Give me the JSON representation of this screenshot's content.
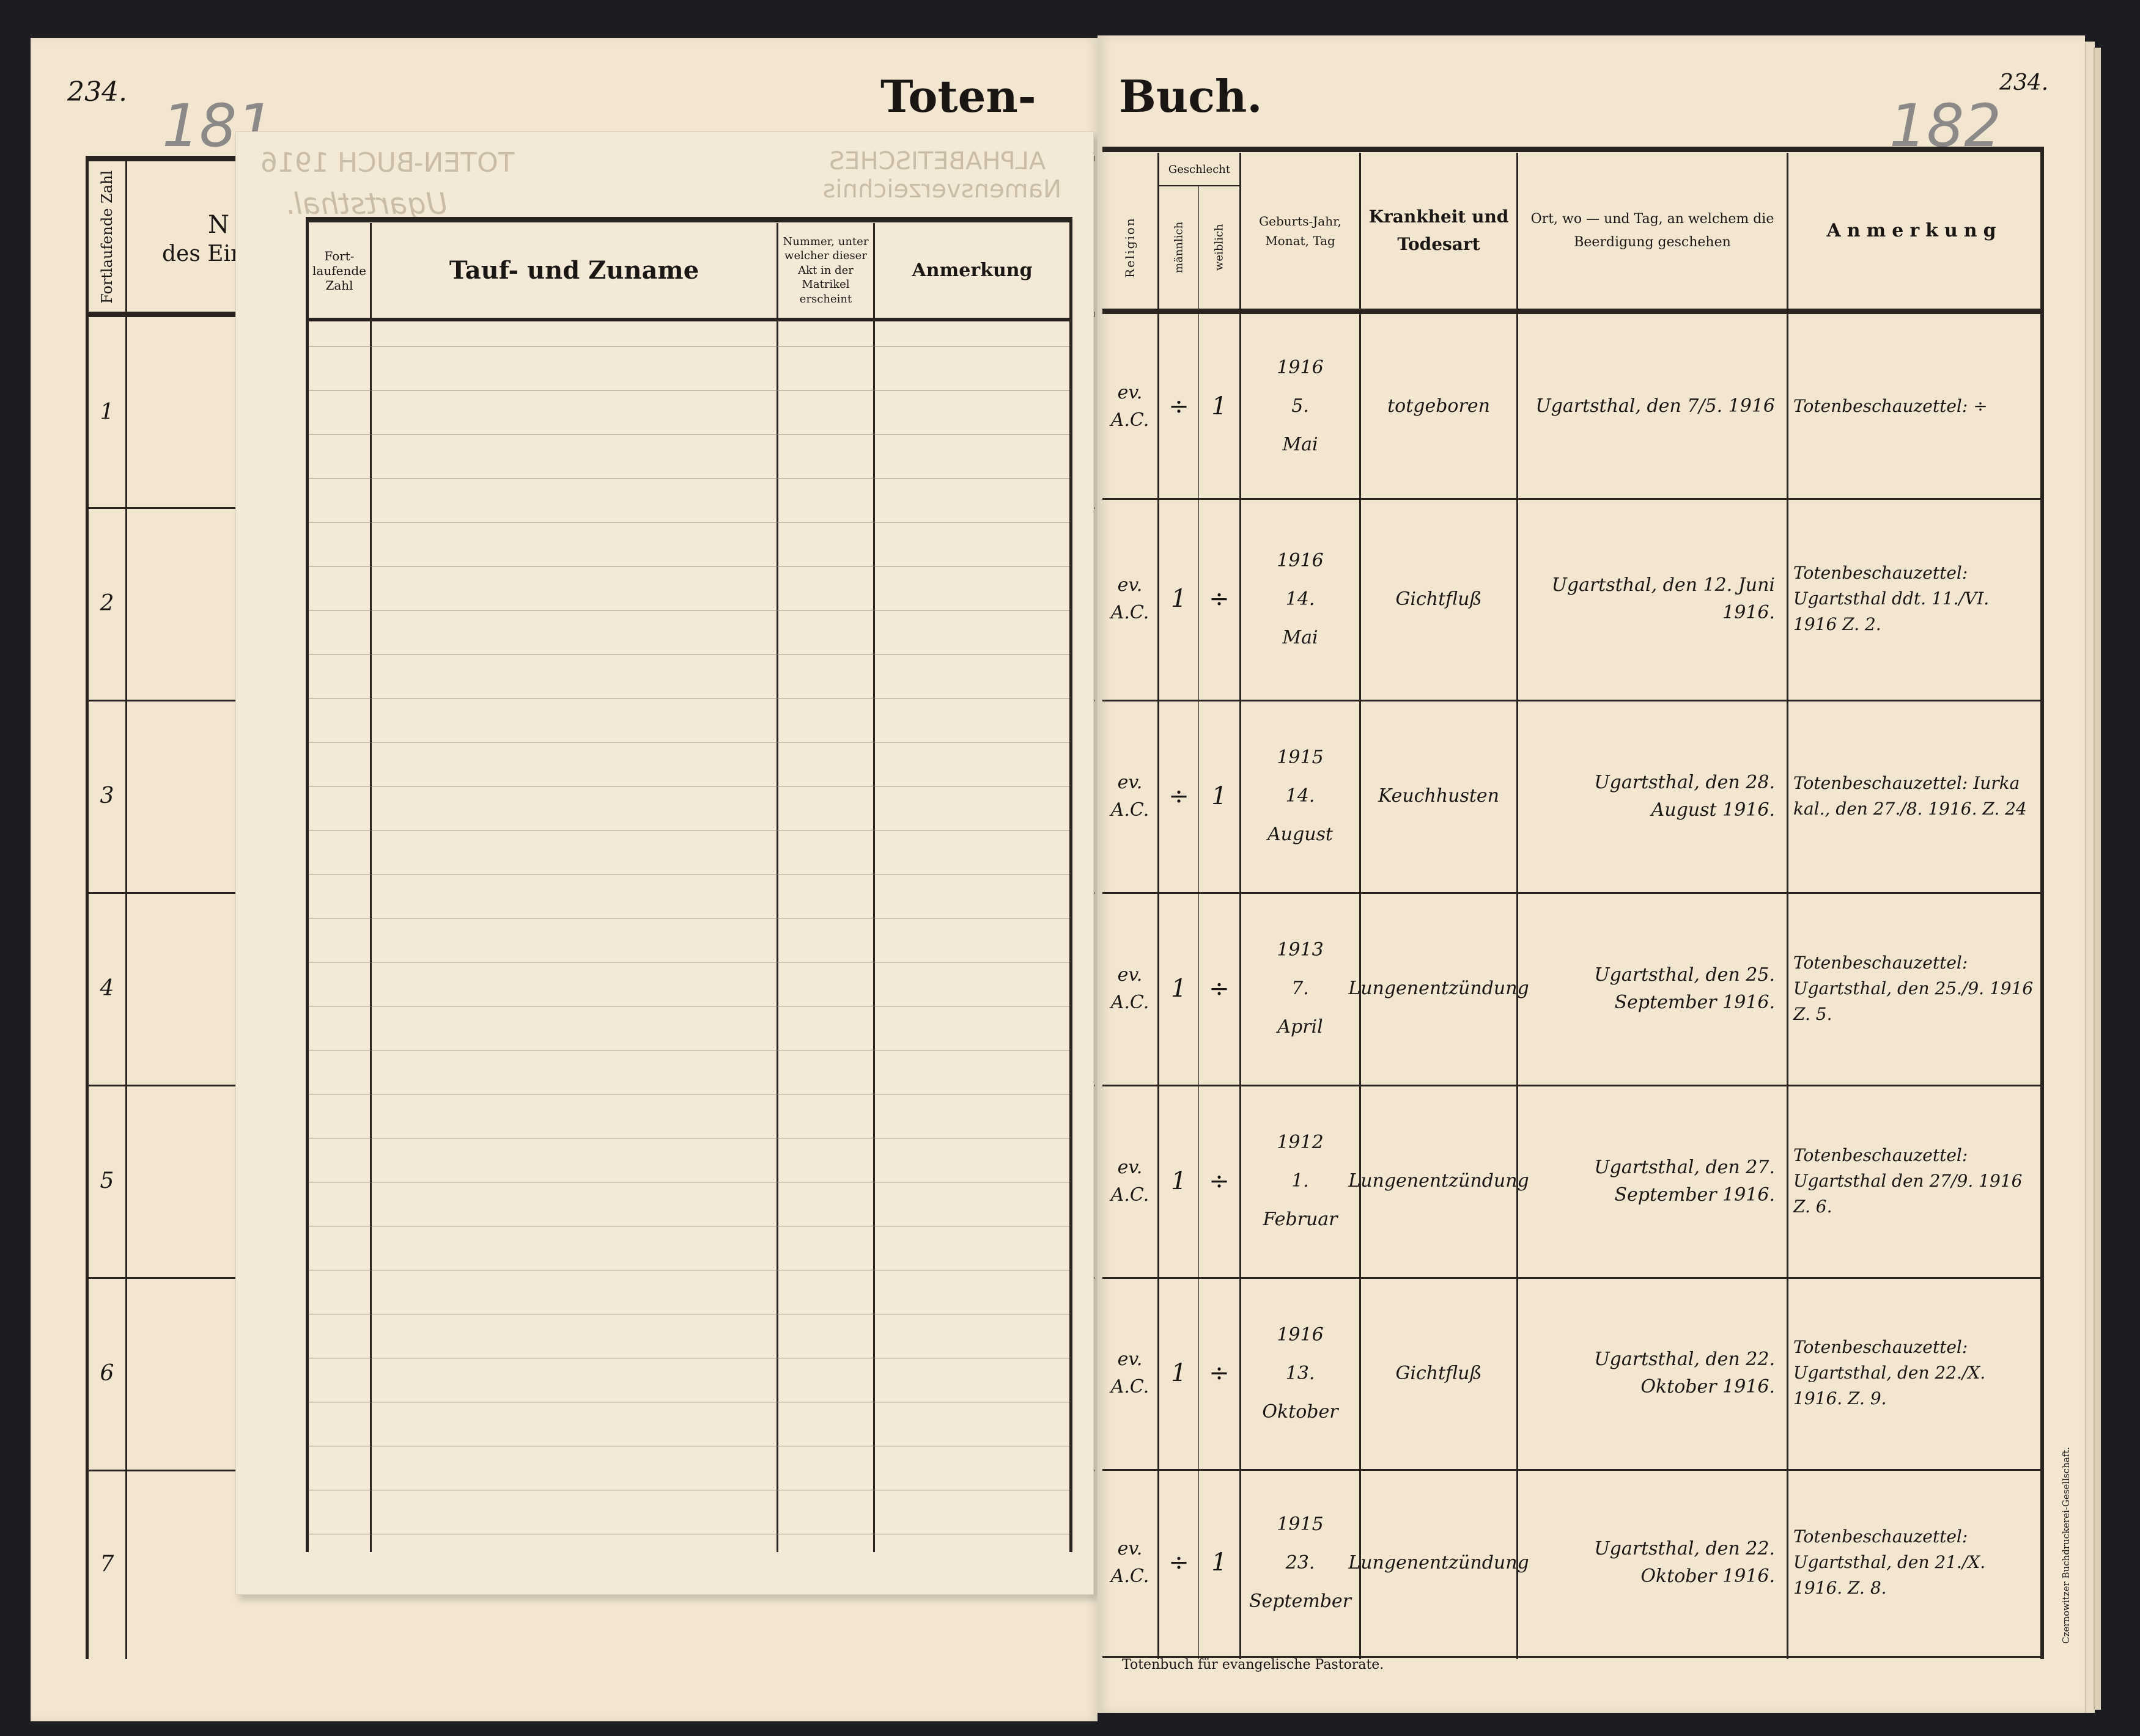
{
  "book_title": {
    "left": "Toten-",
    "right": "Buch."
  },
  "page_numbers": {
    "left_printed": "234.",
    "left_pencil": "181",
    "right_printed": "234.",
    "right_pencil": "182"
  },
  "left_page": {
    "headers": {
      "number": "Fortlaufende Zahl",
      "name_partial_1": "N",
      "name_partial_2": "des Ein"
    },
    "rows": [
      "1",
      "2",
      "3",
      "4",
      "5",
      "6",
      "7"
    ]
  },
  "insert_sheet": {
    "headers": {
      "number": "Fort-laufende Zahl",
      "name": "Tauf- und Zuname",
      "matrikel": "Nummer, unter welcher dieser Akt in der Matrikel erscheint",
      "remark": "Anmerkung"
    },
    "bleed_through": {
      "title": "TOTEN-BUCH 1916",
      "place": "Ugartsthal.",
      "index": "ALPHABETISCHES Namensverzeichnis"
    }
  },
  "right_page": {
    "headers": {
      "religion": "Religion",
      "sex": "Geschlecht",
      "male": "männlich",
      "female": "weiblich",
      "birth": "Geburts-Jahr, Monat, Tag",
      "cause": "Krankheit und Todesart",
      "burial": "Ort, wo — und Tag, an welchem die Beerdigung geschehen",
      "remark": "Anmerkung"
    },
    "rows": [
      {
        "religion": "ev. A.C.",
        "male": "÷",
        "female": "1",
        "birth_year": "1916",
        "birth_day": "5.",
        "birth_month": "Mai",
        "cause": "totgeboren",
        "burial": "Ugartsthal, den 7/5. 1916",
        "remark": "Totenbeschauzettel: ÷"
      },
      {
        "religion": "ev. A.C.",
        "male": "1",
        "female": "÷",
        "birth_year": "1916",
        "birth_day": "14.",
        "birth_month": "Mai",
        "cause": "Gichtfluß",
        "burial": "Ugartsthal, den 12. Juni 1916.",
        "remark": "Totenbeschauzettel: Ugartsthal ddt. 11./VI. 1916 Z. 2."
      },
      {
        "religion": "ev. A.C.",
        "male": "÷",
        "female": "1",
        "birth_year": "1915",
        "birth_day": "14.",
        "birth_month": "August",
        "cause": "Keuchhusten",
        "burial": "Ugartsthal, den 28. August 1916.",
        "remark": "Totenbeschauzettel: Iurka kal., den 27./8. 1916. Z. 24"
      },
      {
        "religion": "ev. A.C.",
        "male": "1",
        "female": "÷",
        "birth_year": "1913",
        "birth_day": "7.",
        "birth_month": "April",
        "cause": "Lungenentzündung",
        "burial": "Ugartsthal, den 25. September 1916.",
        "remark": "Totenbeschauzettel: Ugartsthal, den 25./9. 1916 Z. 5."
      },
      {
        "religion": "ev. A.C.",
        "male": "1",
        "female": "÷",
        "birth_year": "1912",
        "birth_day": "1.",
        "birth_month": "Februar",
        "cause": "Lungenentzündung",
        "burial": "Ugartsthal, den 27. September 1916.",
        "remark": "Totenbeschauzettel: Ugartsthal den 27/9. 1916 Z. 6."
      },
      {
        "religion": "ev. A.C.",
        "male": "1",
        "female": "÷",
        "birth_year": "1916",
        "birth_day": "13.",
        "birth_month": "Oktober",
        "cause": "Gichtfluß",
        "burial": "Ugartsthal, den 22. Oktober 1916.",
        "remark": "Totenbeschauzettel: Ugartsthal, den 22./X. 1916. Z. 9."
      },
      {
        "religion": "ev. A.C.",
        "male": "÷",
        "female": "1",
        "birth_year": "1915",
        "birth_day": "23.",
        "birth_month": "September",
        "cause": "Lungenentzündung",
        "burial": "Ugartsthal, den 22. Oktober 1916.",
        "remark": "Totenbeschauzettel: Ugartsthal, den 21./X. 1916. Z. 8."
      }
    ],
    "footer": "Totenbuch für evangelische Pastorate.",
    "printer": "Czernowitzer Buchdruckerei-Gesellschaft."
  },
  "colors": {
    "paper": "#f2e6d1",
    "ink": "#1a1614",
    "pencil": "#8c8a88",
    "background": "#1d1d21"
  }
}
